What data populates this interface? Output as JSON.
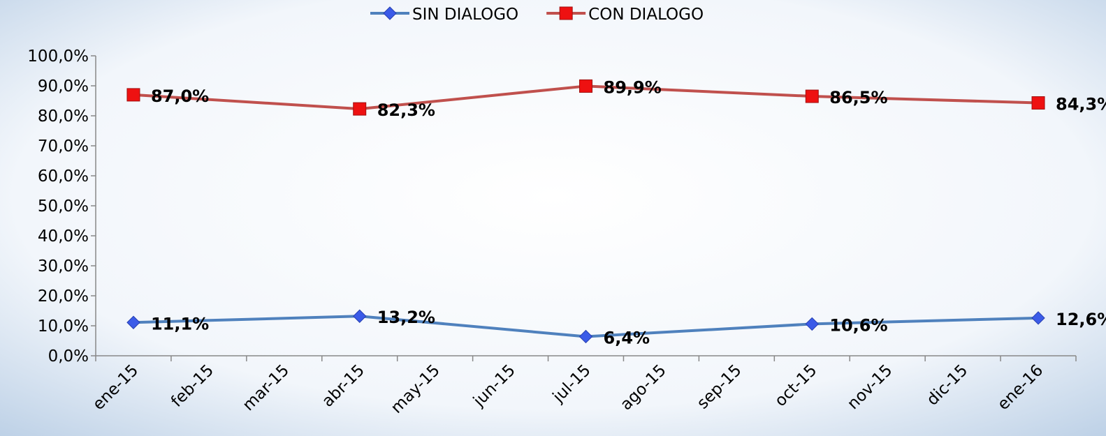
{
  "chart_data": {
    "type": "line",
    "categories": [
      "ene-15",
      "feb-15",
      "mar-15",
      "abr-15",
      "may-15",
      "jun-15",
      "jul-15",
      "ago-15",
      "sep-15",
      "oct-15",
      "nov-15",
      "dic-15",
      "ene-16"
    ],
    "series": [
      {
        "name": "SIN DIALOGO",
        "color": "#4f81bd",
        "marker_color": "#3b5be8",
        "marker": "diamond",
        "values": [
          11.1,
          null,
          null,
          13.2,
          null,
          null,
          6.4,
          null,
          null,
          10.6,
          null,
          null,
          12.6
        ],
        "value_labels": [
          "11,1%",
          null,
          null,
          "13,2%",
          null,
          null,
          "6,4%",
          null,
          null,
          "10,6%",
          null,
          null,
          "12,6%"
        ]
      },
      {
        "name": "CON DIALOGO",
        "color": "#c0504d",
        "marker_color": "#ee1111",
        "marker": "square",
        "values": [
          87.0,
          null,
          null,
          82.3,
          null,
          null,
          89.9,
          null,
          null,
          86.5,
          null,
          null,
          84.3
        ],
        "value_labels": [
          "87,0%",
          null,
          null,
          "82,3%",
          null,
          null,
          "89,9%",
          null,
          null,
          "86,5%",
          null,
          null,
          "84,3%"
        ]
      }
    ],
    "ylim": [
      0,
      100
    ],
    "yticks": [
      {
        "value": 0,
        "label": "0,0%"
      },
      {
        "value": 10,
        "label": "10,0%"
      },
      {
        "value": 20,
        "label": "20,0%"
      },
      {
        "value": 30,
        "label": "30,0%"
      },
      {
        "value": 40,
        "label": "40,0%"
      },
      {
        "value": 50,
        "label": "50,0%"
      },
      {
        "value": 60,
        "label": "60,0%"
      },
      {
        "value": 70,
        "label": "70,0%"
      },
      {
        "value": 80,
        "label": "80,0%"
      },
      {
        "value": 90,
        "label": "90,0%"
      },
      {
        "value": 100,
        "label": "100,0%"
      }
    ],
    "connect_gaps": true,
    "legend": "top"
  }
}
